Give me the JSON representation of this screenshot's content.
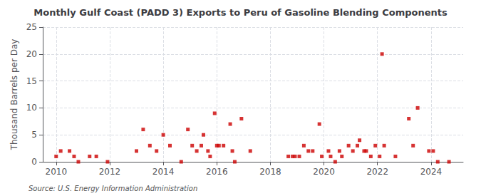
{
  "chart_data": {
    "type": "scatter",
    "title": "Monthly Gulf Coast (PADD 3) Exports to Peru of Gasoline Blending Components",
    "ylabel": "Thousand Barrels per Day",
    "annotations": [
      "Source: U.S. Energy Information Administration"
    ],
    "color": "#cc0000",
    "marker": "square",
    "grid": true,
    "xlim": [
      2009.5,
      2025.2
    ],
    "xticks": [
      2010,
      2012,
      2014,
      2016,
      2018,
      2020,
      2022,
      2024
    ],
    "ylim": [
      0,
      25
    ],
    "yticks": [
      0,
      5,
      10,
      15,
      20,
      25
    ],
    "x": [
      2010.0,
      2010.17,
      2010.5,
      2010.67,
      2010.83,
      2011.25,
      2011.5,
      2011.92,
      2013.0,
      2013.25,
      2013.5,
      2013.75,
      2014.0,
      2014.25,
      2014.67,
      2014.92,
      2015.08,
      2015.25,
      2015.42,
      2015.5,
      2015.67,
      2015.75,
      2015.92,
      2016.0,
      2016.08,
      2016.25,
      2016.5,
      2016.58,
      2016.67,
      2016.92,
      2017.25,
      2018.67,
      2018.83,
      2018.92,
      2019.08,
      2019.25,
      2019.42,
      2019.58,
      2019.83,
      2019.92,
      2020.17,
      2020.25,
      2020.42,
      2020.58,
      2020.67,
      2020.92,
      2021.08,
      2021.25,
      2021.33,
      2021.5,
      2021.58,
      2021.75,
      2021.92,
      2022.08,
      2022.17,
      2022.25,
      2022.67,
      2023.17,
      2023.33,
      2023.5,
      2023.92,
      2024.08,
      2024.25,
      2024.67
    ],
    "values": [
      1.0,
      2.0,
      2.0,
      1.0,
      0.0,
      1.0,
      1.0,
      0.0,
      2.0,
      6.0,
      3.0,
      2.0,
      5.0,
      3.0,
      0.0,
      6.0,
      3.0,
      2.0,
      3.0,
      5.0,
      2.0,
      1.0,
      9.0,
      3.0,
      3.0,
      3.0,
      7.0,
      2.0,
      0.0,
      8.0,
      2.0,
      1.0,
      1.0,
      1.0,
      1.0,
      3.0,
      2.0,
      2.0,
      7.0,
      1.0,
      2.0,
      1.0,
      0.0,
      2.0,
      1.0,
      3.0,
      2.0,
      3.0,
      4.0,
      2.0,
      2.0,
      1.0,
      3.0,
      1.0,
      20.0,
      3.0,
      1.0,
      8.0,
      3.0,
      10.0,
      2.0,
      2.0,
      0.0,
      0.0
    ]
  }
}
